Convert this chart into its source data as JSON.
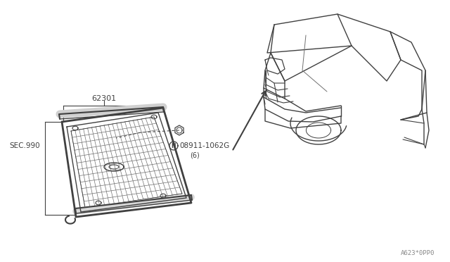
{
  "bg_color": "#ffffff",
  "line_color": "#404040",
  "light_line_color": "#707070",
  "text_color": "#404040",
  "part_number_grille": "62301",
  "part_label_sec": "SEC.990",
  "part_number_nut": "08911-1062G",
  "part_nut_qty": "(6)",
  "part_nut_prefix": "N",
  "diagram_code": "A623*0PP0",
  "figure_width": 6.4,
  "figure_height": 3.72,
  "dpi": 100
}
